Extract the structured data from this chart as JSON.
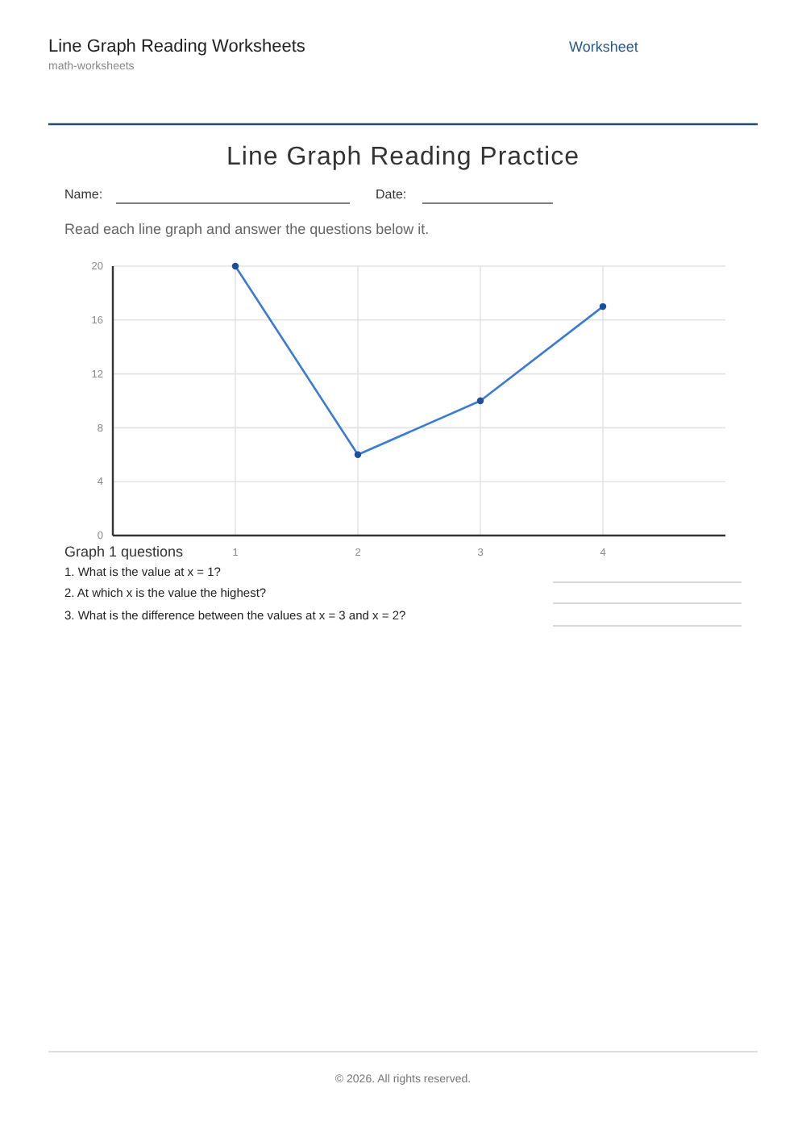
{
  "chart_data": {
    "type": "line",
    "title": "Line Graph Reading Practice",
    "x": [
      1,
      2,
      3,
      4
    ],
    "series": [
      {
        "color": "#3a7bd5",
        "values": [
          20,
          6,
          10,
          17
        ]
      }
    ],
    "xlim": [
      0,
      5
    ],
    "xticks": [
      1,
      2,
      3,
      4
    ],
    "ylim": [
      0,
      20
    ],
    "yticks": [
      0,
      4,
      8,
      12,
      16,
      20
    ],
    "grid": true,
    "marker": "circle",
    "line_style": "solid",
    "annotations": [
      "Line Graph Reading Worksheets",
      "math-worksheets",
      "Worksheet",
      "Name:",
      "Date:",
      "Read each line graph and answer the questions below it.",
      "Graph 1 questions",
      "1. What is the value at x = 1?",
      "2. At which x is the value the highest?",
      "3. What is the difference between the values at x = 3 and x = 2?",
      "© 2026. All rights reserved."
    ]
  }
}
